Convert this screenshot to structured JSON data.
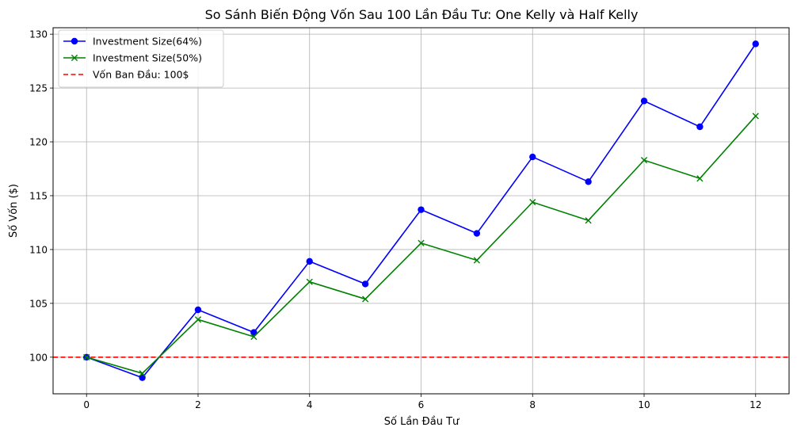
{
  "chart_data": {
    "type": "line",
    "title": "So Sánh Biến Động Vốn Sau 100 Lần Đầu Tư: One Kelly và Half Kelly",
    "xlabel": "Số Lần Đầu Tư",
    "ylabel": "Số Vốn ($)",
    "xlim": [
      -0.6,
      12.6
    ],
    "ylim": [
      96.6,
      130.6
    ],
    "xticks": [
      0,
      2,
      4,
      6,
      8,
      10,
      12
    ],
    "yticks": [
      100,
      105,
      110,
      115,
      120,
      125,
      130
    ],
    "grid": true,
    "legend_position": "top-left",
    "x": [
      0,
      1,
      2,
      3,
      4,
      5,
      6,
      7,
      8,
      9,
      10,
      11,
      12
    ],
    "series": [
      {
        "name": "Investment Size(64%)",
        "color": "#0000ff",
        "marker": "circle",
        "values": [
          100.0,
          98.1,
          104.4,
          102.3,
          108.9,
          106.8,
          113.7,
          111.5,
          118.6,
          116.3,
          123.8,
          121.4,
          129.1
        ]
      },
      {
        "name": "Investment Size(50%)",
        "color": "#008000",
        "marker": "x",
        "values": [
          100.0,
          98.5,
          103.5,
          101.9,
          107.0,
          105.4,
          110.6,
          109.0,
          114.4,
          112.7,
          118.3,
          116.6,
          122.4
        ]
      }
    ],
    "reference_line": {
      "label": "Vốn Ban Đầu: 100$",
      "y": 100,
      "color": "#ff0000",
      "style": "dashed"
    }
  }
}
